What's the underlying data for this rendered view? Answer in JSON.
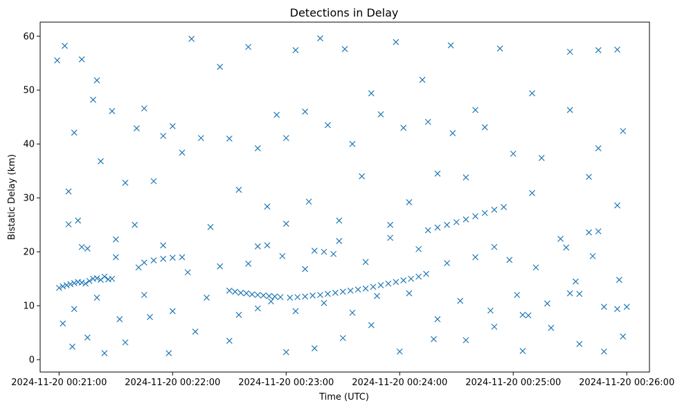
{
  "chart_data": {
    "type": "scatter",
    "title": "Detections in Delay",
    "xlabel": "Time (UTC)",
    "ylabel": "Bistatic Delay (km)",
    "marker": "x",
    "color": "#1f77b4",
    "grid": false,
    "xlim": [
      "2024-11-20 00:20:50",
      "2024-11-20 00:26:12"
    ],
    "ylim": [
      -2.3,
      62.6
    ],
    "xticks": [
      "2024-11-20 00:21:00",
      "2024-11-20 00:22:00",
      "2024-11-20 00:23:00",
      "2024-11-20 00:24:00",
      "2024-11-20 00:25:00",
      "2024-11-20 00:26:00"
    ],
    "yticks": [
      0,
      10,
      20,
      30,
      40,
      50,
      60
    ],
    "series": [
      {
        "values_note": "",
        "points": [
          [
            "2024-11-20 00:21:00",
            13.3
          ],
          [
            "2024-11-20 00:21:02",
            13.6
          ],
          [
            "2024-11-20 00:21:04",
            13.8
          ],
          [
            "2024-11-20 00:21:06",
            14.0
          ],
          [
            "2024-11-20 00:21:08",
            14.2
          ],
          [
            "2024-11-20 00:21:10",
            14.4
          ],
          [
            "2024-11-20 00:21:12",
            14.3
          ],
          [
            "2024-11-20 00:21:14",
            14.1
          ],
          [
            "2024-11-20 00:21:16",
            14.6
          ],
          [
            "2024-11-20 00:21:18",
            15.0
          ],
          [
            "2024-11-20 00:21:20",
            15.1
          ],
          [
            "2024-11-20 00:21:22",
            14.8
          ],
          [
            "2024-11-20 00:21:24",
            15.4
          ],
          [
            "2024-11-20 00:21:26",
            14.9
          ],
          [
            "2024-11-20 00:21:28",
            15.0
          ],
          [
            "2024-11-20 00:22:30",
            12.8
          ],
          [
            "2024-11-20 00:22:33",
            12.6
          ],
          [
            "2024-11-20 00:22:36",
            12.4
          ],
          [
            "2024-11-20 00:22:39",
            12.3
          ],
          [
            "2024-11-20 00:22:42",
            12.1
          ],
          [
            "2024-11-20 00:22:45",
            12.0
          ],
          [
            "2024-11-20 00:22:48",
            11.9
          ],
          [
            "2024-11-20 00:22:51",
            11.8
          ],
          [
            "2024-11-20 00:22:54",
            11.7
          ],
          [
            "2024-11-20 00:22:57",
            11.6
          ],
          [
            "2024-11-20 00:23:02",
            11.5
          ],
          [
            "2024-11-20 00:23:06",
            11.6
          ],
          [
            "2024-11-20 00:23:10",
            11.7
          ],
          [
            "2024-11-20 00:23:14",
            11.9
          ],
          [
            "2024-11-20 00:23:18",
            12.0
          ],
          [
            "2024-11-20 00:23:22",
            12.2
          ],
          [
            "2024-11-20 00:23:26",
            12.4
          ],
          [
            "2024-11-20 00:23:30",
            12.6
          ],
          [
            "2024-11-20 00:23:34",
            12.8
          ],
          [
            "2024-11-20 00:23:38",
            13.0
          ],
          [
            "2024-11-20 00:23:42",
            13.2
          ],
          [
            "2024-11-20 00:23:46",
            13.5
          ],
          [
            "2024-11-20 00:23:50",
            13.8
          ],
          [
            "2024-11-20 00:23:54",
            14.1
          ],
          [
            "2024-11-20 00:23:58",
            14.4
          ],
          [
            "2024-11-20 00:24:02",
            14.7
          ],
          [
            "2024-11-20 00:24:06",
            15.0
          ],
          [
            "2024-11-20 00:24:10",
            15.4
          ],
          [
            "2024-11-20 00:24:14",
            15.9
          ],
          [
            "2024-11-20 00:21:45",
            18.0
          ],
          [
            "2024-11-20 00:21:50",
            18.4
          ],
          [
            "2024-11-20 00:21:55",
            18.7
          ],
          [
            "2024-11-20 00:22:00",
            18.9
          ],
          [
            "2024-11-20 00:22:05",
            19.0
          ],
          [
            "2024-11-20 00:22:45",
            21.0
          ],
          [
            "2024-11-20 00:22:50",
            21.2
          ],
          [
            "2024-11-20 00:23:15",
            20.2
          ],
          [
            "2024-11-20 00:23:20",
            20.0
          ],
          [
            "2024-11-20 00:23:25",
            19.6
          ],
          [
            "2024-11-20 00:24:15",
            24.0
          ],
          [
            "2024-11-20 00:24:20",
            24.5
          ],
          [
            "2024-11-20 00:24:25",
            25.0
          ],
          [
            "2024-11-20 00:24:30",
            25.5
          ],
          [
            "2024-11-20 00:24:35",
            26.0
          ],
          [
            "2024-11-20 00:24:40",
            26.6
          ],
          [
            "2024-11-20 00:24:45",
            27.2
          ],
          [
            "2024-11-20 00:24:50",
            27.8
          ],
          [
            "2024-11-20 00:24:55",
            28.3
          ],
          [
            "2024-11-20 00:25:05",
            8.3
          ],
          [
            "2024-11-20 00:25:08",
            8.2
          ],
          [
            "2024-11-20 00:25:30",
            12.3
          ],
          [
            "2024-11-20 00:25:35",
            12.2
          ],
          [
            "2024-11-20 00:25:40",
            23.6
          ],
          [
            "2024-11-20 00:25:45",
            23.8
          ],
          [
            "2024-11-20 00:25:55",
            9.4
          ],
          [
            "2024-11-20 00:26:00",
            9.8
          ],
          [
            "2024-11-20 00:20:59",
            55.5
          ],
          [
            "2024-11-20 00:21:03",
            58.2
          ],
          [
            "2024-11-20 00:21:12",
            55.7
          ],
          [
            "2024-11-20 00:21:20",
            51.8
          ],
          [
            "2024-11-20 00:21:35",
            32.8
          ],
          [
            "2024-11-20 00:21:41",
            42.9
          ],
          [
            "2024-11-20 00:21:55",
            41.5
          ],
          [
            "2024-11-20 00:22:10",
            59.5
          ],
          [
            "2024-11-20 00:22:25",
            54.3
          ],
          [
            "2024-11-20 00:22:40",
            58.0
          ],
          [
            "2024-11-20 00:22:55",
            45.4
          ],
          [
            "2024-11-20 00:23:05",
            57.4
          ],
          [
            "2024-11-20 00:23:18",
            59.6
          ],
          [
            "2024-11-20 00:23:31",
            57.6
          ],
          [
            "2024-11-20 00:23:45",
            49.4
          ],
          [
            "2024-11-20 00:23:58",
            58.9
          ],
          [
            "2024-11-20 00:24:12",
            51.9
          ],
          [
            "2024-11-20 00:24:27",
            58.3
          ],
          [
            "2024-11-20 00:24:40",
            46.3
          ],
          [
            "2024-11-20 00:24:53",
            57.7
          ],
          [
            "2024-11-20 00:25:10",
            49.4
          ],
          [
            "2024-11-20 00:25:30",
            57.1
          ],
          [
            "2024-11-20 00:25:45",
            57.4
          ],
          [
            "2024-11-20 00:25:55",
            57.5
          ],
          [
            "2024-11-20 00:21:05",
            31.2
          ],
          [
            "2024-11-20 00:21:10",
            25.8
          ],
          [
            "2024-11-20 00:21:15",
            20.6
          ],
          [
            "2024-11-20 00:21:22",
            36.8
          ],
          [
            "2024-11-20 00:21:30",
            22.3
          ],
          [
            "2024-11-20 00:21:40",
            25.0
          ],
          [
            "2024-11-20 00:21:50",
            33.1
          ],
          [
            "2024-11-20 00:22:05",
            38.4
          ],
          [
            "2024-11-20 00:22:20",
            24.6
          ],
          [
            "2024-11-20 00:22:35",
            31.5
          ],
          [
            "2024-11-20 00:22:50",
            28.4
          ],
          [
            "2024-11-20 00:23:00",
            25.2
          ],
          [
            "2024-11-20 00:23:12",
            29.3
          ],
          [
            "2024-11-20 00:23:28",
            25.8
          ],
          [
            "2024-11-20 00:23:40",
            34.0
          ],
          [
            "2024-11-20 00:23:55",
            25.0
          ],
          [
            "2024-11-20 00:24:05",
            29.2
          ],
          [
            "2024-11-20 00:24:20",
            34.5
          ],
          [
            "2024-11-20 00:24:35",
            33.8
          ],
          [
            "2024-11-20 00:24:50",
            20.9
          ],
          [
            "2024-11-20 00:25:10",
            30.9
          ],
          [
            "2024-11-20 00:25:25",
            22.4
          ],
          [
            "2024-11-20 00:25:40",
            33.9
          ],
          [
            "2024-11-20 00:25:55",
            28.6
          ],
          [
            "2024-11-20 00:21:02",
            6.7
          ],
          [
            "2024-11-20 00:21:07",
            2.4
          ],
          [
            "2024-11-20 00:21:15",
            4.1
          ],
          [
            "2024-11-20 00:21:24",
            1.2
          ],
          [
            "2024-11-20 00:21:35",
            3.2
          ],
          [
            "2024-11-20 00:21:48",
            7.9
          ],
          [
            "2024-11-20 00:21:58",
            1.2
          ],
          [
            "2024-11-20 00:22:12",
            5.2
          ],
          [
            "2024-11-20 00:22:30",
            3.5
          ],
          [
            "2024-11-20 00:22:45",
            9.5
          ],
          [
            "2024-11-20 00:23:00",
            1.4
          ],
          [
            "2024-11-20 00:23:15",
            2.1
          ],
          [
            "2024-11-20 00:23:30",
            4.0
          ],
          [
            "2024-11-20 00:23:45",
            6.4
          ],
          [
            "2024-11-20 00:24:00",
            1.5
          ],
          [
            "2024-11-20 00:24:18",
            3.8
          ],
          [
            "2024-11-20 00:24:35",
            3.6
          ],
          [
            "2024-11-20 00:24:50",
            6.1
          ],
          [
            "2024-11-20 00:25:05",
            1.6
          ],
          [
            "2024-11-20 00:25:20",
            5.9
          ],
          [
            "2024-11-20 00:25:35",
            2.9
          ],
          [
            "2024-11-20 00:25:48",
            1.5
          ],
          [
            "2024-11-20 00:25:58",
            4.3
          ],
          [
            "2024-11-20 00:21:08",
            42.1
          ],
          [
            "2024-11-20 00:21:18",
            48.2
          ],
          [
            "2024-11-20 00:21:28",
            46.1
          ],
          [
            "2024-11-20 00:21:45",
            46.6
          ],
          [
            "2024-11-20 00:22:00",
            43.3
          ],
          [
            "2024-11-20 00:22:15",
            41.1
          ],
          [
            "2024-11-20 00:22:30",
            41.0
          ],
          [
            "2024-11-20 00:22:45",
            39.2
          ],
          [
            "2024-11-20 00:23:00",
            41.1
          ],
          [
            "2024-11-20 00:23:10",
            46.0
          ],
          [
            "2024-11-20 00:23:22",
            43.5
          ],
          [
            "2024-11-20 00:23:35",
            40.0
          ],
          [
            "2024-11-20 00:23:50",
            45.5
          ],
          [
            "2024-11-20 00:24:02",
            43.0
          ],
          [
            "2024-11-20 00:24:15",
            44.1
          ],
          [
            "2024-11-20 00:24:28",
            42.0
          ],
          [
            "2024-11-20 00:24:45",
            43.1
          ],
          [
            "2024-11-20 00:25:00",
            38.2
          ],
          [
            "2024-11-20 00:25:15",
            37.4
          ],
          [
            "2024-11-20 00:25:30",
            46.3
          ],
          [
            "2024-11-20 00:25:45",
            39.2
          ],
          [
            "2024-11-20 00:25:58",
            42.4
          ],
          [
            "2024-11-20 00:21:05",
            25.1
          ],
          [
            "2024-11-20 00:21:12",
            20.9
          ],
          [
            "2024-11-20 00:21:30",
            19.0
          ],
          [
            "2024-11-20 00:21:42",
            17.1
          ],
          [
            "2024-11-20 00:21:55",
            21.2
          ],
          [
            "2024-11-20 00:22:08",
            16.2
          ],
          [
            "2024-11-20 00:22:25",
            17.3
          ],
          [
            "2024-11-20 00:22:40",
            17.8
          ],
          [
            "2024-11-20 00:22:58",
            19.2
          ],
          [
            "2024-11-20 00:23:10",
            16.8
          ],
          [
            "2024-11-20 00:23:28",
            22.0
          ],
          [
            "2024-11-20 00:23:42",
            18.1
          ],
          [
            "2024-11-20 00:23:55",
            22.6
          ],
          [
            "2024-11-20 00:24:10",
            20.5
          ],
          [
            "2024-11-20 00:24:25",
            17.9
          ],
          [
            "2024-11-20 00:24:40",
            19.0
          ],
          [
            "2024-11-20 00:24:58",
            18.5
          ],
          [
            "2024-11-20 00:25:12",
            17.1
          ],
          [
            "2024-11-20 00:25:28",
            20.8
          ],
          [
            "2024-11-20 00:25:42",
            19.2
          ],
          [
            "2024-11-20 00:25:56",
            14.8
          ],
          [
            "2024-11-20 00:21:08",
            9.4
          ],
          [
            "2024-11-20 00:21:20",
            11.5
          ],
          [
            "2024-11-20 00:21:32",
            7.5
          ],
          [
            "2024-11-20 00:21:45",
            12.0
          ],
          [
            "2024-11-20 00:22:00",
            9.0
          ],
          [
            "2024-11-20 00:22:18",
            11.5
          ],
          [
            "2024-11-20 00:22:35",
            8.3
          ],
          [
            "2024-11-20 00:22:52",
            10.8
          ],
          [
            "2024-11-20 00:23:05",
            9.0
          ],
          [
            "2024-11-20 00:23:20",
            10.5
          ],
          [
            "2024-11-20 00:23:35",
            8.7
          ],
          [
            "2024-11-20 00:23:48",
            11.8
          ],
          [
            "2024-11-20 00:24:05",
            12.3
          ],
          [
            "2024-11-20 00:24:20",
            7.5
          ],
          [
            "2024-11-20 00:24:32",
            10.9
          ],
          [
            "2024-11-20 00:24:48",
            9.1
          ],
          [
            "2024-11-20 00:25:02",
            12.0
          ],
          [
            "2024-11-20 00:25:18",
            10.4
          ],
          [
            "2024-11-20 00:25:33",
            14.5
          ],
          [
            "2024-11-20 00:25:48",
            9.8
          ]
        ]
      }
    ]
  }
}
